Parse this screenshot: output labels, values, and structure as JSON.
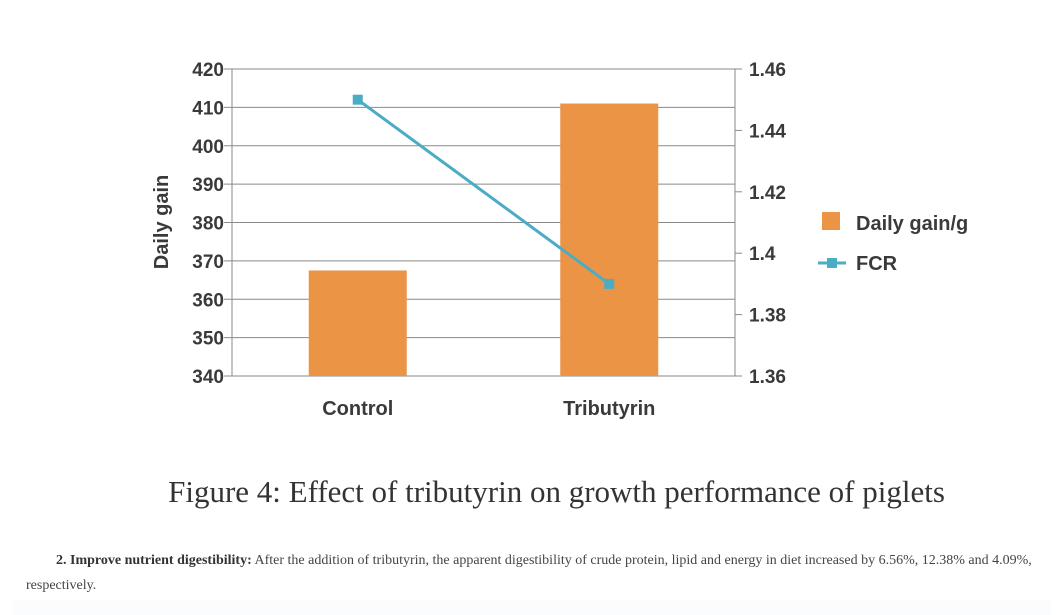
{
  "chart_data": {
    "type": "bar+line",
    "categories": [
      "Control",
      "Tributyrin"
    ],
    "series": [
      {
        "name": "Daily gain/g",
        "type": "bar",
        "axis": "left",
        "values": [
          367.5,
          411
        ],
        "color": "#EB9446"
      },
      {
        "name": "FCR",
        "type": "line",
        "axis": "right",
        "values": [
          1.45,
          1.39
        ],
        "color": "#4BACC6"
      }
    ],
    "ylabel": "Daily gain",
    "ylim": [
      340,
      420
    ],
    "yticks": [
      "340",
      "350",
      "360",
      "370",
      "380",
      "390",
      "400",
      "410",
      "420"
    ],
    "y2lim": [
      1.36,
      1.46
    ],
    "y2ticks": [
      "1.36",
      "1.38",
      "1.4",
      "1.42",
      "1.44",
      "1.46"
    ],
    "grid": true,
    "legend": "right"
  },
  "caption": "Figure 4: Effect of tributyrin on growth performance of piglets",
  "paragraph": {
    "heading": "2. Improve nutrient digestibility:",
    "text": " After the addition of tributyrin, the apparent digestibility of crude protein, lipid and energy in diet increased by 6.56%, 12.38% and 4.09%, respectively."
  }
}
